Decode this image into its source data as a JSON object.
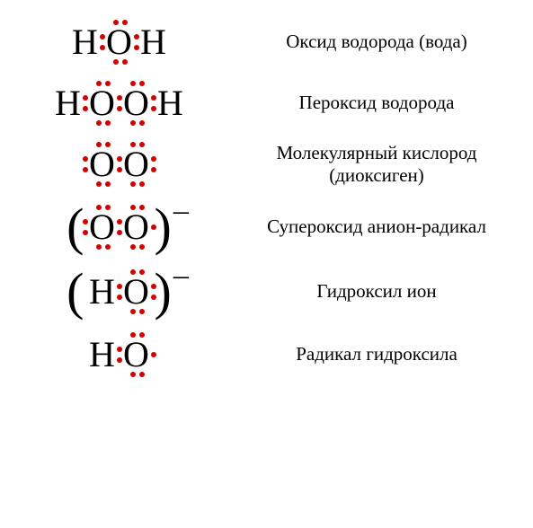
{
  "dot_color": "#d40000",
  "text_color": "#000000",
  "bg_color": "#ffffff",
  "atoms": {
    "H": "H",
    "O": "O"
  },
  "paren_open": "(",
  "paren_close": ")",
  "minus": "–",
  "rows": [
    {
      "id": "water",
      "label": "Оксид водорода (вода)",
      "molecule": {
        "parens": false,
        "charge": null,
        "atoms": [
          {
            "sym": "H",
            "dots": []
          },
          {
            "sym": "O",
            "dots": [
              "t1",
              "t2",
              "b1",
              "b2",
              "l1",
              "l2",
              "r1",
              "r2"
            ]
          },
          {
            "sym": "H",
            "dots": []
          }
        ]
      }
    },
    {
      "id": "peroxide",
      "label": "Пероксид водорода",
      "molecule": {
        "parens": false,
        "charge": null,
        "atoms": [
          {
            "sym": "H",
            "dots": []
          },
          {
            "sym": "O",
            "dots": [
              "t1",
              "t2",
              "b1",
              "b2",
              "l1",
              "l2",
              "r1",
              "r2"
            ]
          },
          {
            "sym": "O",
            "dots": [
              "t1",
              "t2",
              "b1",
              "b2",
              "r1",
              "r2"
            ]
          },
          {
            "sym": "H",
            "dots": []
          }
        ]
      }
    },
    {
      "id": "dioxygen",
      "label": "Молекулярный кислород (диоксиген)",
      "molecule": {
        "parens": false,
        "charge": null,
        "atoms": [
          {
            "sym": "O",
            "dots": [
              "t1",
              "t2",
              "b1",
              "b2",
              "l1",
              "l2",
              "r1",
              "r2"
            ]
          },
          {
            "sym": "O",
            "dots": [
              "t1",
              "t2",
              "b1",
              "b2",
              "r1",
              "r2"
            ]
          }
        ]
      }
    },
    {
      "id": "superoxide",
      "label": "Супероксид анион-радикал",
      "molecule": {
        "parens": true,
        "charge": "minus",
        "atoms": [
          {
            "sym": "O",
            "dots": [
              "t1",
              "t2",
              "b1",
              "b2",
              "l1",
              "l2",
              "r1",
              "r2"
            ]
          },
          {
            "sym": "O",
            "dots": [
              "t1",
              "t2",
              "b1",
              "b2",
              "rm"
            ]
          }
        ]
      }
    },
    {
      "id": "hydroxide",
      "label": "Гидроксил ион",
      "molecule": {
        "parens": true,
        "charge": "minus",
        "atoms": [
          {
            "sym": "H",
            "dots": []
          },
          {
            "sym": "O",
            "dots": [
              "t1",
              "t2",
              "b1",
              "b2",
              "l1",
              "l2",
              "r1",
              "r2"
            ]
          }
        ]
      }
    },
    {
      "id": "hydroxyl-radical",
      "label": "Радикал гидроксила",
      "molecule": {
        "parens": false,
        "charge": null,
        "atoms": [
          {
            "sym": "H",
            "dots": []
          },
          {
            "sym": "O",
            "dots": [
              "t1",
              "t2",
              "b1",
              "b2",
              "l1",
              "l2",
              "rm"
            ]
          }
        ]
      }
    }
  ]
}
